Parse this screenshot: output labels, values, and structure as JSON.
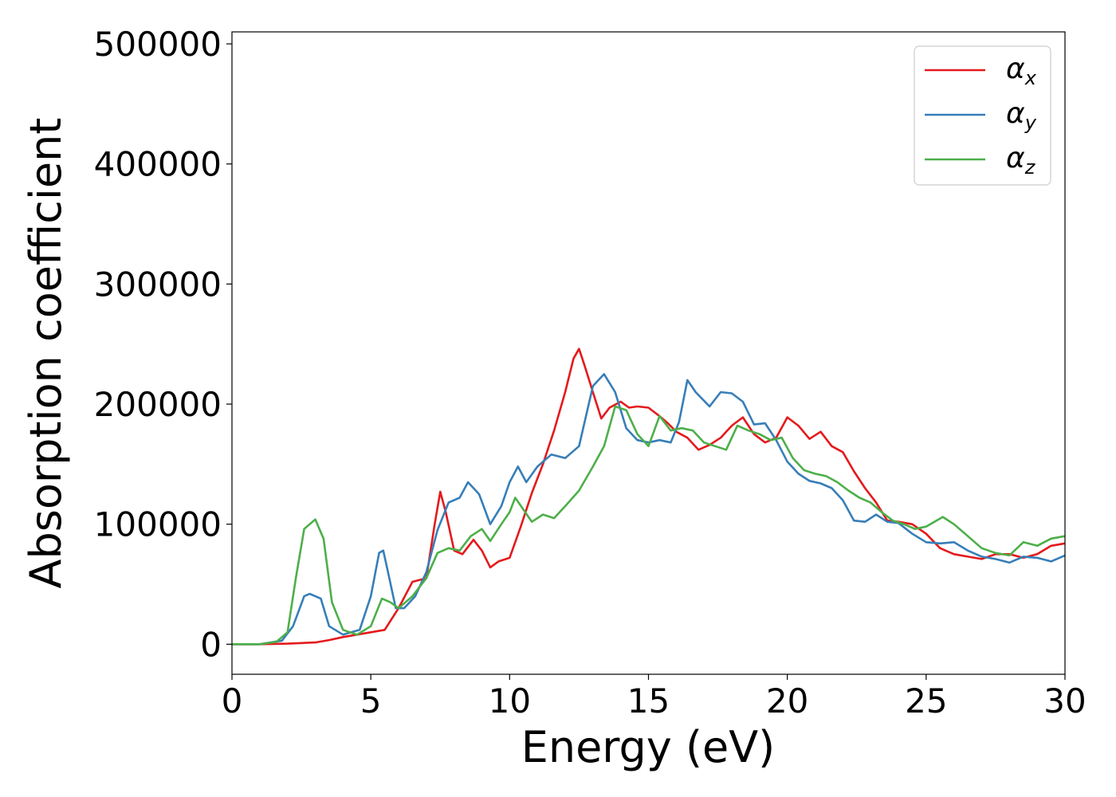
{
  "chart_data": {
    "type": "line",
    "title": "",
    "xlabel": "Energy (eV)",
    "ylabel": "Absorption coefficient",
    "xlim": [
      0,
      30
    ],
    "ylim": [
      -25000,
      510000
    ],
    "xticks": [
      0,
      5,
      10,
      15,
      20,
      25,
      30
    ],
    "yticks": [
      0,
      100000,
      200000,
      300000,
      400000,
      500000
    ],
    "grid": false,
    "legend_position": "top-right",
    "series": [
      {
        "name": "αx",
        "symbol": "α",
        "subscript": "x",
        "color": "#e41a1c",
        "x": [
          0,
          1,
          2,
          3,
          3.5,
          4,
          4.5,
          5,
          5.5,
          6,
          6.5,
          7,
          7.3,
          7.5,
          7.7,
          8,
          8.3,
          8.7,
          9,
          9.3,
          9.6,
          10,
          10.4,
          10.8,
          11.2,
          11.6,
          12,
          12.3,
          12.5,
          12.7,
          13,
          13.3,
          13.6,
          14,
          14.3,
          14.6,
          15,
          15.4,
          15.7,
          16,
          16.4,
          16.8,
          17.2,
          17.6,
          18,
          18.4,
          18.8,
          19.2,
          19.6,
          20,
          20.4,
          20.8,
          21.2,
          21.6,
          22,
          22.4,
          22.8,
          23.2,
          23.6,
          24,
          24.5,
          25,
          25.5,
          26,
          26.5,
          27,
          27.5,
          28,
          28.5,
          29,
          29.5,
          30
        ],
        "y": [
          0,
          0,
          500,
          1500,
          3500,
          6000,
          8000,
          10000,
          12000,
          30000,
          52000,
          55000,
          100000,
          127000,
          110000,
          78000,
          75000,
          87000,
          78000,
          64000,
          69000,
          72000,
          98000,
          126000,
          150000,
          178000,
          210000,
          238000,
          246000,
          232000,
          210000,
          188000,
          197000,
          202000,
          197000,
          198000,
          197000,
          190000,
          184000,
          177000,
          172000,
          162000,
          166000,
          172000,
          182000,
          189000,
          175000,
          168000,
          172000,
          189000,
          182000,
          171000,
          177000,
          165000,
          160000,
          144000,
          130000,
          118000,
          103000,
          102000,
          100000,
          92000,
          80000,
          75000,
          73000,
          71000,
          75000,
          75000,
          72000,
          75000,
          82000,
          84000
        ]
      },
      {
        "name": "αy",
        "symbol": "α",
        "subscript": "y",
        "color": "#377eb8",
        "x": [
          0,
          1,
          1.8,
          2.2,
          2.6,
          2.8,
          3.2,
          3.5,
          4,
          4.6,
          5,
          5.3,
          5.45,
          5.6,
          5.9,
          6.2,
          6.6,
          7,
          7.4,
          7.8,
          8.2,
          8.5,
          8.9,
          9.3,
          9.7,
          10,
          10.3,
          10.6,
          11,
          11.5,
          12,
          12.5,
          13,
          13.4,
          13.8,
          14.2,
          14.6,
          15,
          15.4,
          15.8,
          16.1,
          16.4,
          16.7,
          17.2,
          17.6,
          18,
          18.4,
          18.8,
          19.2,
          19.6,
          20,
          20.4,
          20.8,
          21.2,
          21.6,
          22,
          22.4,
          22.8,
          23.2,
          23.6,
          24,
          24.5,
          25,
          25.5,
          26,
          26.5,
          27,
          27.5,
          28,
          28.5,
          29,
          29.5,
          30
        ],
        "y": [
          0,
          0,
          3000,
          15000,
          40000,
          42000,
          38000,
          15000,
          8000,
          12000,
          40000,
          76000,
          78000,
          62000,
          30000,
          30000,
          40000,
          60000,
          95000,
          118000,
          122000,
          135000,
          125000,
          100000,
          115000,
          135000,
          148000,
          135000,
          148000,
          158000,
          155000,
          165000,
          215000,
          225000,
          210000,
          180000,
          170000,
          168000,
          170000,
          168000,
          185000,
          220000,
          210000,
          198000,
          210000,
          209000,
          202000,
          183000,
          184000,
          170000,
          152000,
          142000,
          136000,
          134000,
          130000,
          120000,
          103000,
          102000,
          108000,
          102000,
          101000,
          92000,
          85000,
          84000,
          85000,
          78000,
          73000,
          71000,
          68000,
          73000,
          72000,
          69000,
          74000
        ]
      },
      {
        "name": "αz",
        "symbol": "α",
        "subscript": "z",
        "color": "#4daf4a",
        "x": [
          0,
          1,
          1.6,
          2,
          2.3,
          2.6,
          3,
          3.3,
          3.6,
          4,
          4.5,
          5,
          5.4,
          5.7,
          6,
          6.5,
          7,
          7.4,
          7.8,
          8.2,
          8.6,
          9,
          9.3,
          9.7,
          10,
          10.2,
          10.5,
          10.8,
          11.2,
          11.6,
          12,
          12.5,
          13,
          13.4,
          13.8,
          14.2,
          14.6,
          15,
          15.4,
          15.8,
          16.2,
          16.6,
          17,
          17.4,
          17.8,
          18.2,
          18.6,
          19,
          19.4,
          19.8,
          20.2,
          20.6,
          21,
          21.4,
          21.8,
          22.2,
          22.6,
          23,
          23.4,
          23.8,
          24.2,
          24.6,
          25,
          25.6,
          26,
          26.5,
          27,
          27.5,
          28,
          28.5,
          29,
          29.5,
          30
        ],
        "y": [
          0,
          0,
          2000,
          10000,
          55000,
          96000,
          104000,
          88000,
          35000,
          12000,
          8000,
          15000,
          38000,
          35000,
          30000,
          40000,
          55000,
          76000,
          80000,
          78000,
          90000,
          96000,
          86000,
          100000,
          110000,
          122000,
          112000,
          102000,
          108000,
          105000,
          115000,
          128000,
          148000,
          165000,
          198000,
          195000,
          175000,
          165000,
          190000,
          178000,
          180000,
          178000,
          168000,
          165000,
          162000,
          182000,
          178000,
          175000,
          170000,
          172000,
          155000,
          145000,
          142000,
          140000,
          135000,
          128000,
          122000,
          118000,
          110000,
          103000,
          100000,
          96000,
          98000,
          106000,
          100000,
          90000,
          80000,
          76000,
          74000,
          85000,
          82000,
          88000,
          90000
        ]
      }
    ]
  }
}
